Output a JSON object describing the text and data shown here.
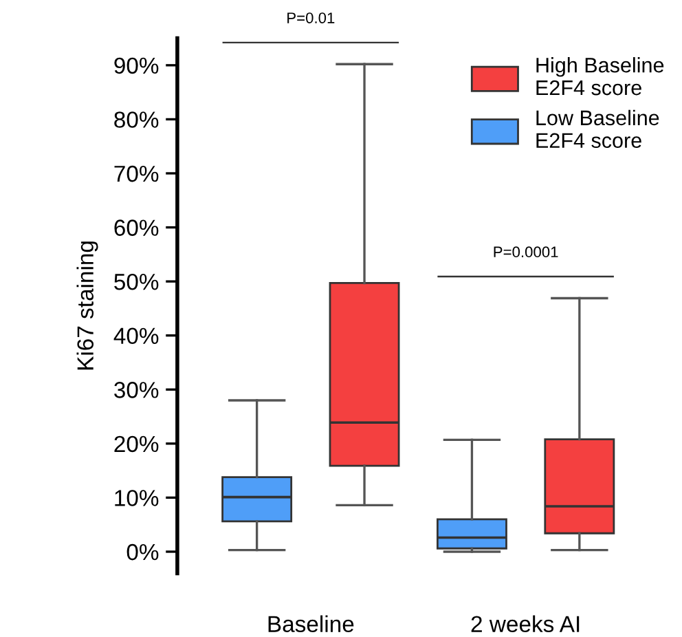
{
  "chart_data": {
    "type": "box",
    "ylabel": "Ki67 staining",
    "categories": [
      "Baseline",
      "2 weeks AI"
    ],
    "series": [
      {
        "name": "Low Baseline E2F4 score",
        "color": "#4f9ef8",
        "boxes": [
          {
            "low": 0.3,
            "q1": 5.6,
            "median": 10.1,
            "q3": 13.8,
            "high": 28
          },
          {
            "low": 0,
            "q1": 0.6,
            "median": 2.6,
            "q3": 6,
            "high": 20.7
          }
        ]
      },
      {
        "name": "High Baseline E2F4 score",
        "color": "#f44040",
        "boxes": [
          {
            "low": 8.6,
            "q1": 15.9,
            "median": 23.9,
            "q3": 49.7,
            "high": 90.2
          },
          {
            "low": 0.3,
            "q1": 3.4,
            "median": 8.4,
            "q3": 20.8,
            "high": 46.9
          }
        ]
      }
    ],
    "ylim": [
      -4,
      95
    ],
    "yticks": [
      {
        "value": 0,
        "label": "0%"
      },
      {
        "value": 10,
        "label": "10%"
      },
      {
        "value": 20,
        "label": "20%"
      },
      {
        "value": 30,
        "label": "30%"
      },
      {
        "value": 40,
        "label": "40%"
      },
      {
        "value": 50,
        "label": "50%"
      },
      {
        "value": 60,
        "label": "60%"
      },
      {
        "value": 70,
        "label": "70%"
      },
      {
        "value": 80,
        "label": "80%"
      },
      {
        "value": 90,
        "label": "90%"
      }
    ],
    "annotations": [
      "P=0.01",
      "P=0.0001"
    ],
    "legend": "top right",
    "grid": false
  }
}
